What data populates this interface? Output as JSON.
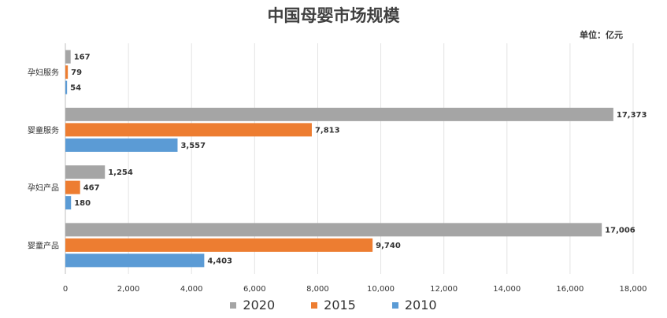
{
  "chart_data": {
    "type": "bar",
    "orientation": "horizontal",
    "title": "中国母婴市场规模",
    "unit_label": "单位：亿元",
    "categories": [
      "孕妇服务",
      "婴童服务",
      "孕妇产品",
      "婴童产品"
    ],
    "series": [
      {
        "name": "2020",
        "color": "#a5a5a5",
        "values": [
          167,
          17373,
          1254,
          17006
        ],
        "labels": [
          "167",
          "17,373",
          "1,254",
          "17,006"
        ]
      },
      {
        "name": "2015",
        "color": "#ed7d31",
        "values": [
          79,
          7813,
          467,
          9740
        ],
        "labels": [
          "79",
          "7,813",
          "467",
          "9,740"
        ]
      },
      {
        "name": "2010",
        "color": "#5b9bd5",
        "values": [
          54,
          3557,
          180,
          4403
        ],
        "labels": [
          "54",
          "3,557",
          "180",
          "4,403"
        ]
      }
    ],
    "xlim": [
      0,
      18000
    ],
    "x_ticks": [
      0,
      2000,
      4000,
      6000,
      8000,
      10000,
      12000,
      14000,
      16000,
      18000
    ],
    "x_tick_labels": [
      "0",
      "2,000",
      "4,000",
      "6,000",
      "8,000",
      "10,000",
      "12,000",
      "14,000",
      "16,000",
      "18,000"
    ],
    "grid": true,
    "legend_position": "bottom"
  }
}
